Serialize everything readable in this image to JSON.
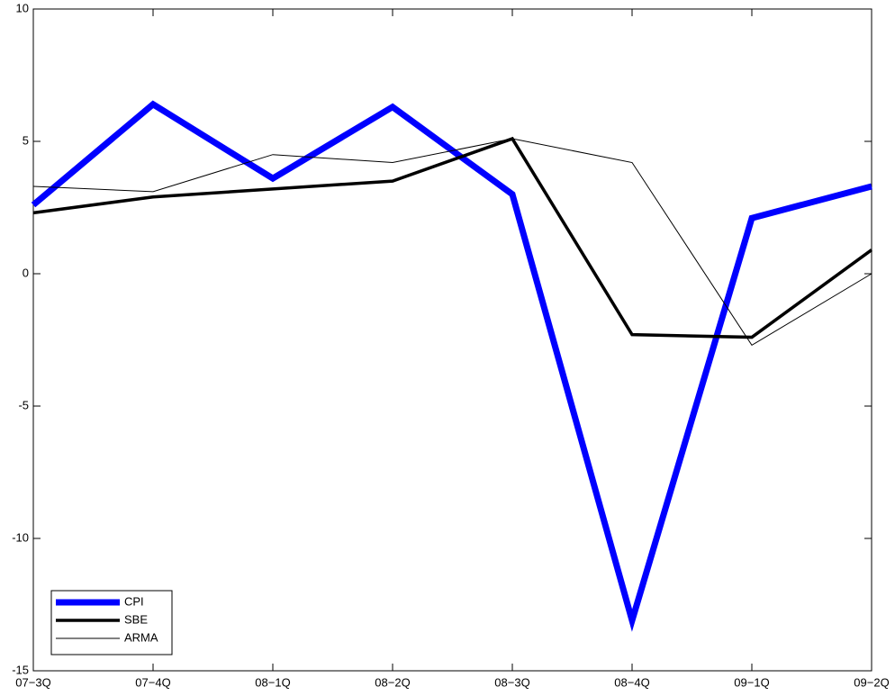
{
  "chart_data": {
    "type": "line",
    "categories": [
      "07−3Q",
      "07−4Q",
      "08−1Q",
      "08−2Q",
      "08−3Q",
      "08−4Q",
      "09−1Q",
      "09−2Q"
    ],
    "series": [
      {
        "name": "CPI",
        "color": "#0000ff",
        "line_width": 7,
        "values": [
          2.6,
          6.4,
          3.6,
          6.3,
          3.0,
          -13.1,
          2.1,
          3.3
        ]
      },
      {
        "name": "SBE",
        "color": "#000000",
        "line_width": 3.5,
        "values": [
          2.3,
          2.9,
          3.2,
          3.5,
          5.1,
          -2.3,
          -2.4,
          0.9
        ]
      },
      {
        "name": "ARMA",
        "color": "#000000",
        "line_width": 1,
        "values": [
          3.3,
          3.1,
          4.5,
          4.2,
          5.1,
          4.2,
          -2.7,
          0.0
        ]
      }
    ],
    "ylim": [
      -15,
      10
    ],
    "yticks": [
      -15,
      -10,
      -5,
      0,
      5,
      10
    ],
    "grid": false,
    "legend": "lower left"
  }
}
